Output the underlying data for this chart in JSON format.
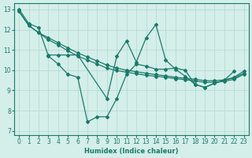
{
  "xlabel": "Humidex (Indice chaleur)",
  "ylabel": "",
  "bg_color": "#d4eeea",
  "grid_color": "#b8dbd5",
  "line_color": "#1a7a6a",
  "xlim": [
    -0.5,
    23.5
  ],
  "ylim": [
    6.8,
    13.3
  ],
  "xticks": [
    0,
    1,
    2,
    3,
    4,
    5,
    6,
    7,
    8,
    9,
    10,
    11,
    12,
    13,
    14,
    15,
    16,
    17,
    18,
    19,
    20,
    21,
    22,
    23
  ],
  "yticks": [
    7,
    8,
    9,
    10,
    11,
    12,
    13
  ],
  "lines": [
    {
      "x": [
        0,
        1,
        2,
        3,
        4,
        5,
        6,
        7,
        8,
        9,
        10,
        11,
        12,
        13,
        14,
        15,
        16,
        17,
        18,
        19,
        20,
        21,
        22,
        23
      ],
      "y": [
        12.9,
        12.2,
        11.85,
        11.6,
        11.35,
        11.1,
        10.85,
        10.65,
        10.45,
        10.25,
        10.1,
        10.0,
        9.92,
        9.85,
        9.78,
        9.72,
        9.65,
        9.6,
        9.55,
        9.48,
        9.48,
        9.52,
        9.62,
        9.85
      ]
    },
    {
      "x": [
        0,
        1,
        2,
        3,
        4,
        5,
        6,
        7,
        8,
        9,
        10,
        11,
        12,
        13,
        14,
        15,
        16,
        17,
        18,
        19,
        20,
        21,
        22,
        23
      ],
      "y": [
        12.9,
        12.2,
        11.85,
        11.5,
        11.25,
        10.95,
        10.7,
        10.5,
        10.3,
        10.1,
        9.98,
        9.9,
        9.82,
        9.75,
        9.7,
        9.65,
        9.58,
        9.53,
        9.47,
        9.4,
        9.4,
        9.45,
        9.55,
        9.8
      ]
    },
    {
      "x": [
        0,
        1,
        2,
        3,
        4,
        5,
        6,
        7,
        8,
        9,
        10,
        11,
        12,
        13,
        14,
        15,
        16,
        17,
        18,
        19,
        20,
        21,
        22
      ],
      "y": [
        13.0,
        12.3,
        12.1,
        10.7,
        10.3,
        9.8,
        9.65,
        7.45,
        7.7,
        7.7,
        8.6,
        9.8,
        10.3,
        10.2,
        10.05,
        10.05,
        10.1,
        10.0,
        9.3,
        9.15,
        9.35,
        9.5,
        9.95
      ]
    },
    {
      "x": [
        3,
        4,
        5,
        6,
        9,
        10,
        11,
        12,
        13,
        14,
        15,
        16,
        17,
        18,
        19,
        20,
        21,
        22,
        23
      ],
      "y": [
        10.75,
        10.75,
        10.75,
        10.75,
        8.6,
        10.7,
        11.45,
        10.4,
        11.6,
        12.25,
        10.5,
        10.05,
        9.7,
        9.3,
        9.15,
        9.35,
        9.5,
        9.65,
        9.95
      ]
    }
  ]
}
